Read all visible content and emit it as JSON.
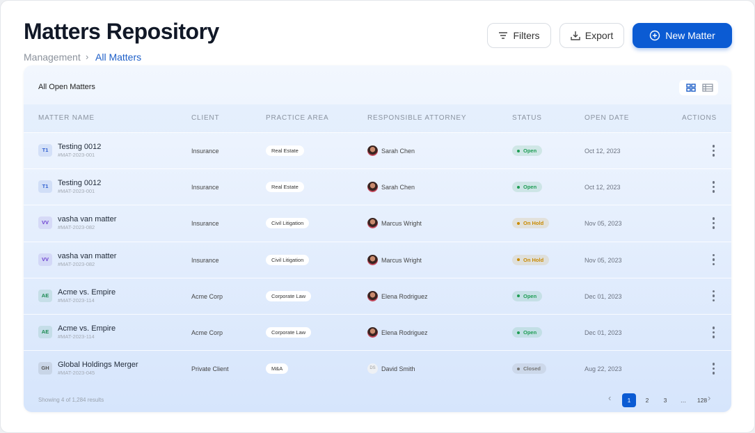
{
  "header": {
    "title": "Matters Repository",
    "breadcrumb": [
      "Management",
      "All Matters"
    ],
    "buttons": {
      "filters": "Filters",
      "export": "Export",
      "new": "New Matter"
    }
  },
  "table": {
    "title": "All Open Matters",
    "columns": [
      "MATTER NAME",
      "CLIENT",
      "PRACTICE AREA",
      "RESPONSIBLE ATTORNEY",
      "STATUS",
      "OPEN DATE",
      "ACTIONS"
    ],
    "rows": [
      {
        "initials": "T1",
        "badge_color": "#2f5fd0",
        "name": "Testing 0012",
        "id": "#MAT-2023-001",
        "client": "Insurance",
        "practice_area": "Real Estate",
        "attorney": "Sarah Chen",
        "status": "Open",
        "status_color": "#1f9d55",
        "open_date": "Oct 12, 2023"
      },
      {
        "initials": "T1",
        "badge_color": "#2f5fd0",
        "name": "Testing 0012",
        "id": "#MAT-2023-001",
        "client": "Insurance",
        "practice_area": "Real Estate",
        "attorney": "Sarah Chen",
        "status": "Open",
        "status_color": "#1f9d55",
        "open_date": "Oct 12, 2023"
      },
      {
        "initials": "VV",
        "badge_color": "#6b3fd0",
        "name": "vasha van matter",
        "id": "#MAT-2023-082",
        "client": "Insurance",
        "practice_area": "Civil Litigation",
        "attorney": "Marcus Wright",
        "status": "On Hold",
        "status_color": "#c98a00",
        "open_date": "Nov 05, 2023"
      },
      {
        "initials": "VV",
        "badge_color": "#6b3fd0",
        "name": "vasha van matter",
        "id": "#MAT-2023-082",
        "client": "Insurance",
        "practice_area": "Civil Litigation",
        "attorney": "Marcus Wright",
        "status": "On Hold",
        "status_color": "#c98a00",
        "open_date": "Nov 05, 2023"
      },
      {
        "initials": "AE",
        "badge_color": "#1c8a52",
        "name": "Acme vs. Empire",
        "id": "#MAT-2023-114",
        "client": "Acme Corp",
        "practice_area": "Corporate Law",
        "attorney": "Elena Rodriguez",
        "status": "Open",
        "status_color": "#1f9d55",
        "open_date": "Dec 01, 2023"
      },
      {
        "initials": "AE",
        "badge_color": "#1c8a52",
        "name": "Acme vs. Empire",
        "id": "#MAT-2023-114",
        "client": "Acme Corp",
        "practice_area": "Corporate Law",
        "attorney": "Elena Rodriguez",
        "status": "Open",
        "status_color": "#1f9d55",
        "open_date": "Dec 01, 2023"
      },
      {
        "initials": "GH",
        "badge_color": "#555555",
        "name": "Global Holdings Merger",
        "id": "#MAT-2023-045",
        "client": "Private Client",
        "practice_area": "M&A",
        "avatar": "DS",
        "attorney": "David Smith",
        "status": "Closed",
        "status_color": "#777777",
        "open_date": "Aug 22, 2023"
      }
    ]
  },
  "footer": {
    "summary": "Showing 4 of 1,284 results",
    "pages": [
      1,
      2,
      3,
      "…",
      128
    ],
    "current_page": 0
  }
}
